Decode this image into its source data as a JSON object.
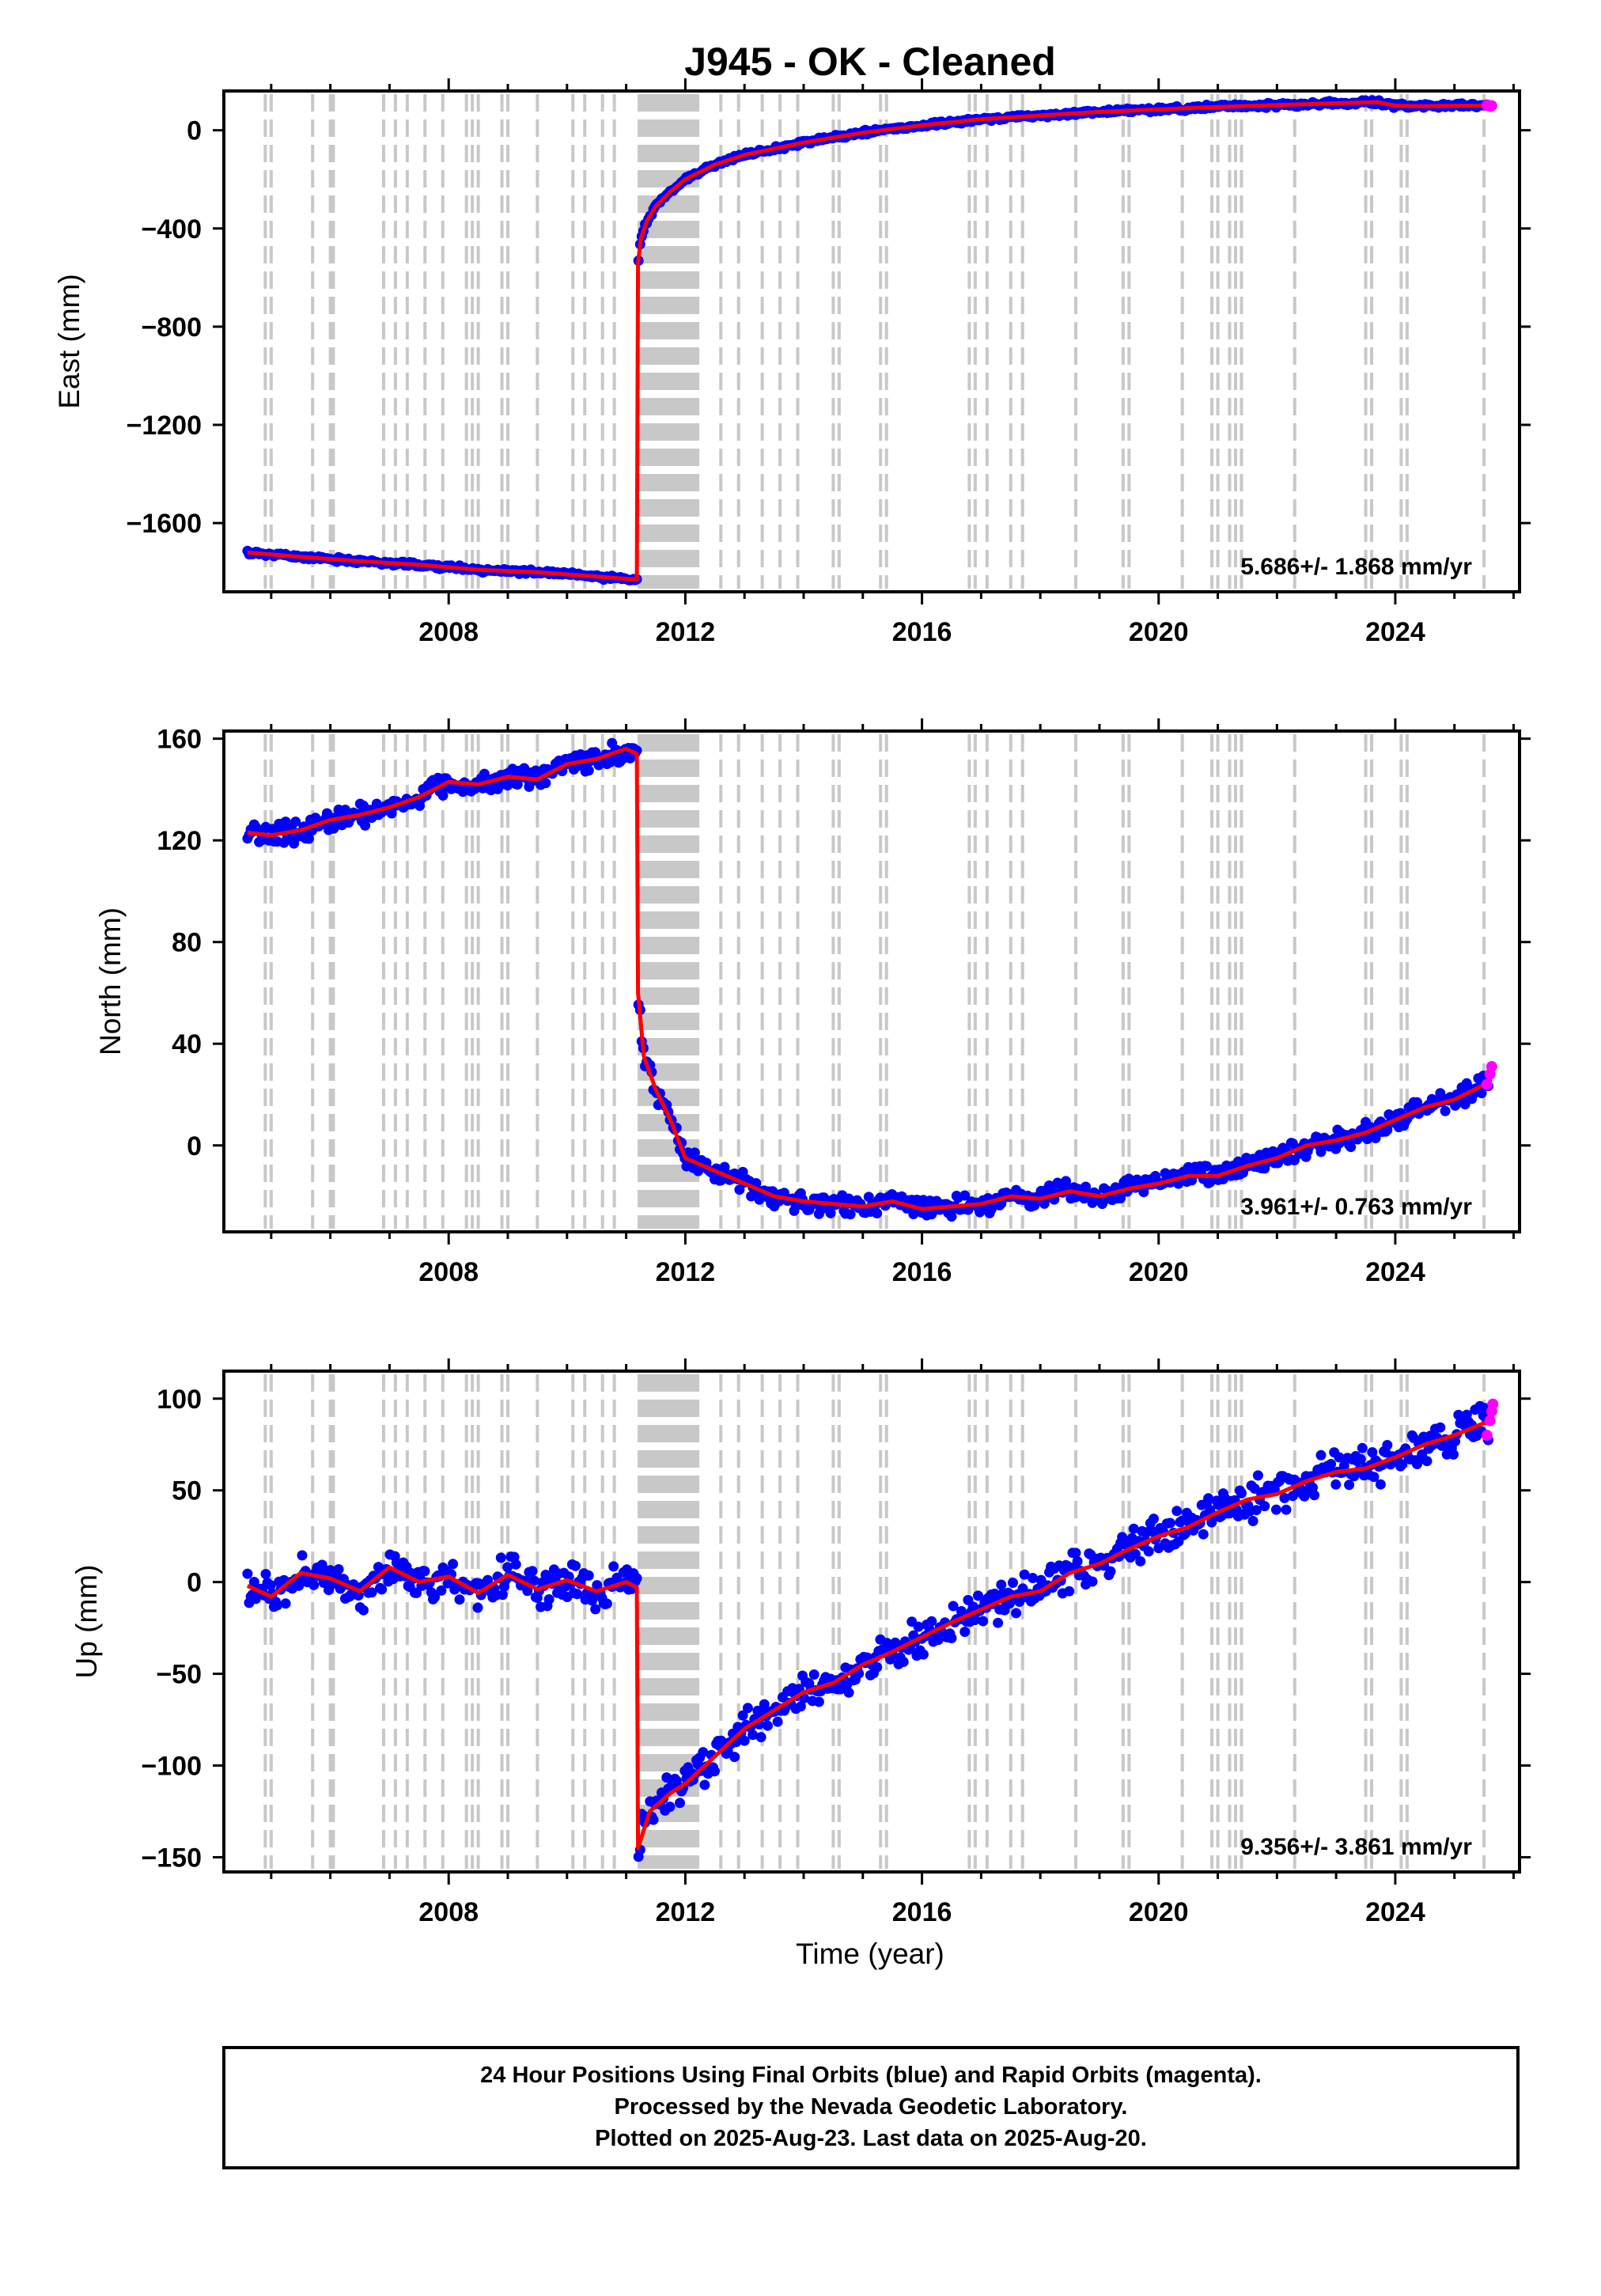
{
  "figure": {
    "title": "J945  - OK - Cleaned",
    "xlabel": "Time (year)",
    "footer_lines": [
      "24 Hour Positions Using Final Orbits (blue) and Rapid Orbits (magenta).",
      "Processed by the Nevada Geodetic Laboratory.",
      "Plotted on 2025-Aug-23. Last data on 2025-Aug-20."
    ],
    "colors": {
      "final_orbits": "#0000ff",
      "rapid_orbits": "#ff00ff",
      "model_fit": "#ff0000",
      "equipment_change_lines": "#c8c8c8"
    }
  },
  "chart_data": [
    {
      "type": "scatter",
      "panel": "east",
      "ylabel": "East (mm)",
      "xlim": [
        2004.2,
        2026.1
      ],
      "ylim": [
        -1880,
        160
      ],
      "xticks": [
        2008,
        2012,
        2016,
        2020,
        2024
      ],
      "yticks": [
        -1600,
        -1200,
        -800,
        -400,
        0
      ],
      "rate_label": "5.686+/- 1.868 mm/yr",
      "grid": false,
      "series": [
        {
          "name": "Final Orbits",
          "color": "#0000ff",
          "x": [
            2004.6,
            2005.5,
            2006.5,
            2007.5,
            2008.5,
            2009.5,
            2010.5,
            2011.18,
            2011.2,
            2011.25,
            2011.35,
            2011.5,
            2011.75,
            2012.0,
            2012.5,
            2013.0,
            2014.0,
            2015.0,
            2016.0,
            2017.0,
            2018.0,
            2019.0,
            2020.0,
            2021.0,
            2022.0,
            2023.0,
            2023.7,
            2024.0,
            2024.5,
            2025.0,
            2025.6
          ],
          "y": [
            -1720,
            -1738,
            -1755,
            -1770,
            -1790,
            -1800,
            -1818,
            -1830,
            -540,
            -440,
            -370,
            -310,
            -250,
            -200,
            -140,
            -100,
            -50,
            -10,
            20,
            45,
            60,
            75,
            85,
            95,
            103,
            110,
            115,
            100,
            98,
            100,
            100
          ]
        },
        {
          "name": "Rapid Orbits",
          "color": "#ff00ff",
          "x": [
            2025.55,
            2025.6,
            2025.63
          ],
          "y": [
            102,
            98,
            100
          ]
        }
      ],
      "equipment_changes": [
        2004.9,
        2005.0,
        2005.7,
        2006.0,
        2006.05,
        2006.9,
        2007.1,
        2007.3,
        2007.6,
        2007.9,
        2008.3,
        2008.4,
        2008.5,
        2008.9,
        2009.0,
        2009.5,
        2010.1,
        2010.3,
        2010.6,
        2010.8
      ]
    },
    {
      "type": "scatter",
      "panel": "north",
      "ylabel": "North (mm)",
      "xlim": [
        2004.2,
        2026.1
      ],
      "ylim": [
        -34,
        163
      ],
      "xticks": [
        2008,
        2012,
        2016,
        2020,
        2024
      ],
      "yticks": [
        0,
        40,
        80,
        120,
        160
      ],
      "rate_label": "3.961+/- 0.763 mm/yr",
      "grid": false,
      "series": [
        {
          "name": "Final Orbits",
          "color": "#0000ff",
          "x": [
            2004.6,
            2005.0,
            2005.5,
            2006.0,
            2006.5,
            2007.0,
            2007.5,
            2008.0,
            2008.5,
            2009.0,
            2009.5,
            2010.0,
            2010.5,
            2011.0,
            2011.18,
            2011.2,
            2011.3,
            2011.5,
            2011.75,
            2012.0,
            2012.5,
            2013.0,
            2013.5,
            2014.0,
            2014.5,
            2015.0,
            2015.5,
            2016.0,
            2016.5,
            2017.0,
            2017.5,
            2018.0,
            2018.5,
            2019.0,
            2019.5,
            2020.0,
            2020.5,
            2021.0,
            2021.5,
            2022.0,
            2022.5,
            2023.0,
            2023.5,
            2024.0,
            2024.5,
            2025.0,
            2025.6
          ],
          "y": [
            123,
            122,
            124,
            128,
            130,
            133,
            137,
            143,
            142,
            145,
            144,
            150,
            152,
            156,
            154,
            60,
            35,
            22,
            10,
            -5,
            -10,
            -15,
            -20,
            -22,
            -23,
            -24,
            -22,
            -25,
            -24,
            -23,
            -20,
            -21,
            -18,
            -20,
            -17,
            -15,
            -12,
            -12,
            -8,
            -5,
            0,
            2,
            5,
            10,
            15,
            18,
            25
          ]
        },
        {
          "name": "Rapid Orbits",
          "color": "#ff00ff",
          "x": [
            2025.55,
            2025.6,
            2025.63
          ],
          "y": [
            24,
            28,
            31
          ]
        }
      ],
      "equipment_changes": [
        2004.9,
        2005.0,
        2005.7,
        2006.0,
        2006.05,
        2006.9,
        2007.1,
        2007.3,
        2007.6,
        2007.9,
        2008.3,
        2008.4,
        2008.5,
        2008.9,
        2009.0,
        2009.5,
        2010.1,
        2010.3,
        2010.6,
        2010.8
      ]
    },
    {
      "type": "scatter",
      "panel": "up",
      "ylabel": "Up (mm)",
      "xlim": [
        2004.2,
        2026.1
      ],
      "ylim": [
        -158,
        115
      ],
      "xticks": [
        2008,
        2012,
        2016,
        2020,
        2024
      ],
      "yticks": [
        -150,
        -100,
        -50,
        0,
        50,
        100
      ],
      "rate_label": "9.356+/- 3.861 mm/yr",
      "grid": false,
      "series": [
        {
          "name": "Final Orbits",
          "color": "#0000ff",
          "x": [
            2004.6,
            2005.0,
            2005.5,
            2006.0,
            2006.5,
            2007.0,
            2007.5,
            2008.0,
            2008.5,
            2009.0,
            2009.5,
            2010.0,
            2010.5,
            2011.0,
            2011.18,
            2011.2,
            2011.4,
            2011.75,
            2012.0,
            2012.5,
            2013.0,
            2013.5,
            2014.0,
            2014.5,
            2015.0,
            2015.5,
            2016.0,
            2016.5,
            2017.0,
            2017.5,
            2018.0,
            2018.5,
            2019.0,
            2019.5,
            2020.0,
            2020.5,
            2021.0,
            2021.5,
            2022.0,
            2022.5,
            2023.0,
            2023.5,
            2024.0,
            2024.5,
            2025.0,
            2025.6
          ],
          "y": [
            -2,
            -8,
            5,
            2,
            -5,
            8,
            0,
            3,
            -6,
            4,
            -4,
            1,
            -5,
            0,
            -3,
            -145,
            -125,
            -115,
            -110,
            -95,
            -80,
            -70,
            -60,
            -55,
            -45,
            -38,
            -30,
            -22,
            -15,
            -8,
            -5,
            5,
            10,
            18,
            25,
            30,
            38,
            45,
            48,
            55,
            60,
            62,
            68,
            75,
            80,
            88
          ]
        },
        {
          "name": "Rapid Orbits",
          "color": "#ff00ff",
          "x": [
            2025.55,
            2025.6,
            2025.63,
            2025.65
          ],
          "y": [
            80,
            88,
            93,
            97
          ]
        }
      ],
      "equipment_changes": [
        2004.9,
        2005.0,
        2005.7,
        2006.0,
        2006.05,
        2006.9,
        2007.1,
        2007.3,
        2007.6,
        2007.9,
        2008.3,
        2008.4,
        2008.5,
        2008.9,
        2009.0,
        2009.5,
        2010.1,
        2010.3,
        2010.6,
        2010.8
      ]
    }
  ]
}
